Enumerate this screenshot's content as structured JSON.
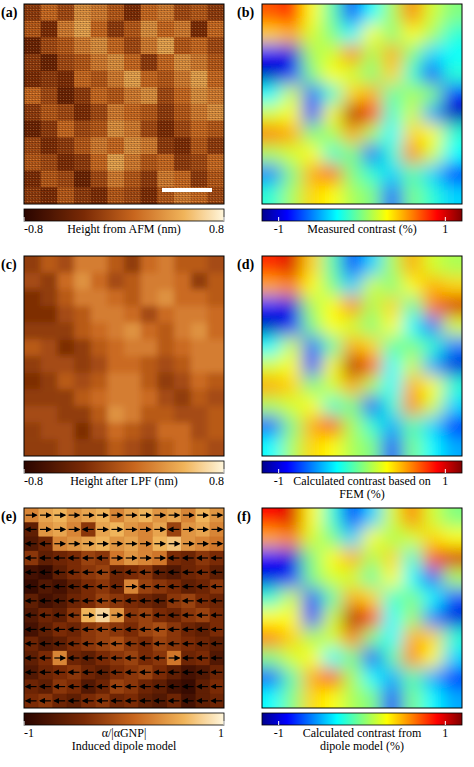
{
  "chart_data": [
    {
      "type": "heatmap",
      "title": "(a)",
      "color": "afmhot",
      "colorbar": {
        "label": "Height from AFM (nm)",
        "range": [
          -0.8,
          0.8
        ],
        "ticks": [
          -0.8,
          0.8
        ]
      },
      "cells": [
        [
          -0.2,
          0.1,
          -0.1,
          0.3,
          0.2,
          0.0,
          -0.3,
          0.1,
          0.2,
          -0.1,
          0.0,
          -0.2
        ],
        [
          0.0,
          -0.3,
          0.2,
          0.4,
          0.1,
          -0.2,
          0.0,
          0.3,
          0.1,
          0.2,
          -0.3,
          0.1
        ],
        [
          -0.4,
          -0.1,
          0.0,
          0.2,
          0.3,
          0.1,
          -0.1,
          0.2,
          0.4,
          0.0,
          0.1,
          -0.1
        ],
        [
          -0.2,
          -0.4,
          -0.1,
          0.0,
          0.2,
          0.3,
          0.1,
          -0.2,
          0.1,
          0.3,
          0.2,
          0.0
        ],
        [
          -0.3,
          -0.2,
          -0.3,
          0.1,
          0.0,
          0.2,
          0.4,
          0.1,
          0.0,
          0.2,
          0.4,
          0.1
        ],
        [
          0.1,
          -0.1,
          -0.4,
          -0.2,
          0.1,
          0.0,
          0.2,
          0.3,
          -0.1,
          0.1,
          0.3,
          0.2
        ],
        [
          -0.2,
          0.0,
          -0.1,
          -0.3,
          -0.1,
          0.2,
          0.1,
          0.0,
          -0.2,
          0.0,
          0.2,
          0.3
        ],
        [
          -0.4,
          -0.2,
          0.1,
          -0.1,
          0.0,
          0.3,
          0.2,
          -0.1,
          -0.3,
          -0.1,
          0.1,
          0.0
        ],
        [
          -0.1,
          -0.3,
          -0.2,
          0.0,
          0.2,
          0.1,
          0.3,
          0.2,
          -0.2,
          -0.3,
          0.0,
          -0.2
        ],
        [
          0.0,
          -0.1,
          -0.3,
          -0.2,
          0.1,
          0.4,
          0.2,
          0.0,
          0.1,
          -0.2,
          -0.1,
          0.1
        ],
        [
          -0.3,
          0.0,
          -0.1,
          -0.4,
          -0.1,
          0.2,
          0.0,
          -0.2,
          0.2,
          0.1,
          -0.2,
          0.0
        ],
        [
          -0.2,
          -0.3,
          0.0,
          -0.2,
          -0.3,
          0.0,
          -0.1,
          -0.3,
          0.0,
          0.2,
          0.1,
          -0.1
        ]
      ]
    },
    {
      "type": "heatmap",
      "title": "(b)",
      "color": "jet",
      "colorbar": {
        "label": "Measured contrast (%)",
        "range": [
          -1.2,
          1.2
        ],
        "ticks": [
          -1,
          1
        ]
      },
      "cells": [
        [
          0.7,
          0.9,
          0.3,
          -0.1,
          -0.8,
          -0.3,
          0.1,
          0.6,
          0.2,
          0.0
        ],
        [
          0.4,
          0.5,
          0.2,
          0.0,
          -0.3,
          0.3,
          0.0,
          0.3,
          0.1,
          -0.2
        ],
        [
          -0.9,
          -1.0,
          0.1,
          0.2,
          0.6,
          0.1,
          0.5,
          0.0,
          -0.4,
          -0.3
        ],
        [
          -1.1,
          -0.8,
          0.0,
          0.3,
          0.2,
          0.0,
          0.4,
          -0.2,
          -0.9,
          -0.2
        ],
        [
          -0.3,
          0.2,
          -0.7,
          -0.2,
          0.4,
          0.5,
          -0.1,
          0.1,
          0.0,
          -0.8
        ],
        [
          0.2,
          0.3,
          -0.9,
          0.3,
          1.1,
          0.8,
          -0.2,
          0.2,
          -0.5,
          -1.1
        ],
        [
          0.6,
          0.5,
          0.0,
          0.1,
          0.5,
          0.1,
          -0.3,
          0.4,
          0.3,
          -0.2
        ],
        [
          0.1,
          0.2,
          0.3,
          -0.2,
          0.0,
          -0.7,
          -0.2,
          0.6,
          0.2,
          -0.3
        ],
        [
          -0.6,
          0.0,
          0.5,
          0.7,
          0.0,
          -0.2,
          -0.4,
          -0.1,
          -0.4,
          -0.9
        ],
        [
          -0.2,
          0.1,
          0.4,
          0.3,
          0.1,
          0.0,
          -0.7,
          0.0,
          -0.2,
          -0.4
        ]
      ]
    },
    {
      "type": "heatmap",
      "title": "(c)",
      "color": "afmhot",
      "colorbar": {
        "label": "Height after LPF (nm)",
        "range": [
          -0.8,
          0.8
        ],
        "ticks": [
          -0.8,
          0.8
        ]
      },
      "cells": [
        [
          -0.2,
          0.0,
          -0.1,
          0.2,
          0.2,
          0.0,
          -0.2,
          0.1,
          0.2,
          0.0,
          0.0,
          -0.1
        ],
        [
          -0.1,
          -0.2,
          0.1,
          0.3,
          0.1,
          -0.1,
          0.0,
          0.2,
          0.2,
          0.1,
          -0.2,
          0.0
        ],
        [
          -0.3,
          -0.2,
          0.0,
          0.2,
          0.2,
          0.1,
          0.0,
          0.2,
          0.3,
          0.1,
          0.1,
          0.0
        ],
        [
          -0.3,
          -0.3,
          -0.1,
          0.0,
          0.2,
          0.2,
          0.1,
          -0.1,
          0.1,
          0.2,
          0.2,
          0.1
        ],
        [
          -0.2,
          -0.2,
          -0.2,
          0.0,
          0.1,
          0.2,
          0.3,
          0.1,
          0.0,
          0.2,
          0.3,
          0.1
        ],
        [
          0.0,
          -0.1,
          -0.3,
          -0.2,
          0.0,
          0.1,
          0.2,
          0.2,
          0.0,
          0.1,
          0.2,
          0.2
        ],
        [
          -0.2,
          -0.1,
          -0.1,
          -0.2,
          -0.1,
          0.1,
          0.1,
          0.0,
          -0.1,
          0.0,
          0.2,
          0.2
        ],
        [
          -0.3,
          -0.2,
          0.0,
          -0.1,
          0.0,
          0.2,
          0.2,
          0.0,
          -0.2,
          -0.1,
          0.1,
          0.0
        ],
        [
          -0.2,
          -0.2,
          -0.2,
          0.0,
          0.1,
          0.2,
          0.2,
          0.1,
          -0.1,
          -0.2,
          0.0,
          -0.1
        ],
        [
          -0.1,
          -0.1,
          -0.2,
          -0.2,
          0.0,
          0.3,
          0.2,
          0.0,
          0.0,
          -0.1,
          -0.1,
          0.0
        ],
        [
          -0.2,
          -0.1,
          -0.1,
          -0.3,
          -0.1,
          0.1,
          0.0,
          -0.1,
          0.1,
          0.1,
          -0.1,
          0.0
        ],
        [
          -0.2,
          -0.2,
          -0.1,
          -0.2,
          -0.2,
          0.0,
          -0.1,
          -0.2,
          0.0,
          0.1,
          0.0,
          -0.1
        ]
      ]
    },
    {
      "type": "heatmap",
      "title": "(d)",
      "color": "jet",
      "colorbar": {
        "label": "Calculated contrast based on FEM (%)",
        "range": [
          -1.2,
          1.2
        ],
        "ticks": [
          -1,
          1
        ]
      },
      "cells": [
        [
          0.8,
          1.0,
          0.4,
          -0.1,
          -0.8,
          -0.4,
          0.1,
          0.5,
          0.2,
          0.1
        ],
        [
          0.5,
          0.6,
          0.3,
          0.0,
          -0.4,
          0.2,
          0.0,
          0.3,
          0.5,
          0.4
        ],
        [
          -0.8,
          -1.0,
          0.1,
          0.3,
          0.6,
          0.1,
          0.4,
          -0.1,
          0.6,
          1.0
        ],
        [
          -1.1,
          -0.9,
          0.0,
          0.3,
          0.2,
          0.0,
          0.3,
          -0.3,
          -0.7,
          0.2
        ],
        [
          -0.3,
          0.2,
          -0.7,
          -0.1,
          0.5,
          0.4,
          -0.1,
          0.0,
          -0.2,
          -0.6
        ],
        [
          0.2,
          0.3,
          -0.9,
          0.3,
          1.1,
          0.7,
          -0.3,
          0.2,
          -0.5,
          -1.0
        ],
        [
          0.5,
          0.4,
          0.0,
          0.2,
          0.5,
          0.1,
          -0.3,
          0.5,
          0.3,
          -0.2
        ],
        [
          0.1,
          0.2,
          0.3,
          -0.2,
          0.0,
          -0.8,
          -0.2,
          0.6,
          0.2,
          -0.4
        ],
        [
          -0.7,
          0.0,
          0.5,
          0.8,
          0.1,
          -0.2,
          -0.5,
          -0.1,
          -0.4,
          -0.9
        ],
        [
          -0.3,
          0.1,
          0.4,
          0.3,
          0.1,
          0.0,
          -0.8,
          0.0,
          -0.3,
          -0.5
        ]
      ]
    },
    {
      "type": "heatmap",
      "title": "(e)",
      "subtitle": "Induced dipole model",
      "color": "afmhot",
      "marker": "arrow",
      "colorbar": {
        "label": "α/|αGNP|",
        "range": [
          -1,
          1
        ],
        "ticks": [
          -1,
          1
        ]
      },
      "cells": [
        [
          0.3,
          0.5,
          0.6,
          0.4,
          0.5,
          0.6,
          0.3,
          0.5,
          0.6,
          0.4,
          0.5,
          0.3,
          0.6,
          0.4
        ],
        [
          -0.6,
          0.4,
          0.5,
          0.3,
          -0.3,
          0.5,
          0.6,
          0.4,
          0.3,
          0.5,
          -0.2,
          0.4,
          0.5,
          0.3
        ],
        [
          -0.7,
          -0.5,
          0.3,
          0.4,
          0.5,
          0.6,
          0.4,
          0.5,
          0.3,
          0.6,
          0.7,
          0.4,
          0.3,
          0.2
        ],
        [
          -0.3,
          -0.6,
          -0.5,
          -0.4,
          -0.2,
          -0.3,
          0.2,
          0.4,
          0.3,
          0.2,
          -0.4,
          -0.5,
          -0.3,
          -0.4
        ],
        [
          -0.8,
          -0.9,
          -0.6,
          -0.4,
          -0.3,
          -0.2,
          -0.5,
          -0.4,
          -0.3,
          -0.6,
          -0.7,
          -0.5,
          -0.4,
          -0.6
        ],
        [
          -0.9,
          -0.7,
          -0.8,
          -0.6,
          -0.4,
          -0.3,
          -0.5,
          0.3,
          -0.2,
          -0.3,
          -0.4,
          -0.6,
          -0.5,
          -0.3
        ],
        [
          -0.6,
          -0.8,
          -0.7,
          -0.5,
          -0.4,
          -0.2,
          -0.3,
          -0.4,
          -0.5,
          -0.6,
          -0.3,
          -0.2,
          -0.4,
          -0.5
        ],
        [
          -0.7,
          -0.5,
          -0.6,
          -0.3,
          0.6,
          0.8,
          0.4,
          -0.3,
          -0.2,
          -0.4,
          -0.5,
          -0.3,
          -0.2,
          -0.4
        ],
        [
          -0.8,
          -0.6,
          -0.4,
          -0.5,
          -0.3,
          -0.2,
          -0.3,
          -0.4,
          -0.2,
          -0.1,
          -0.3,
          -0.5,
          -0.6,
          -0.4
        ],
        [
          -0.5,
          -0.7,
          -0.6,
          -0.4,
          -0.3,
          -0.2,
          -0.1,
          -0.3,
          -0.4,
          -0.2,
          -0.3,
          -0.4,
          -0.5,
          -0.6
        ],
        [
          -0.6,
          -0.4,
          0.3,
          -0.5,
          -0.6,
          -0.4,
          -0.3,
          -0.2,
          -0.4,
          -0.3,
          0.2,
          -0.5,
          -0.4,
          -0.7
        ],
        [
          -0.7,
          -0.5,
          -0.4,
          -0.3,
          -0.5,
          -0.6,
          -0.4,
          -0.3,
          -0.2,
          -0.4,
          -0.6,
          -0.8,
          -0.7,
          -0.5
        ],
        [
          -0.5,
          -0.6,
          -0.3,
          -0.4,
          -0.7,
          -0.5,
          -0.2,
          -0.3,
          -0.5,
          -0.6,
          -0.8,
          -0.9,
          -0.6,
          -0.4
        ],
        [
          -0.4,
          -0.3,
          -0.5,
          -0.6,
          -0.4,
          -0.3,
          -0.5,
          -0.4,
          -0.6,
          -0.7,
          -0.5,
          -0.8,
          -0.6,
          -0.5
        ]
      ]
    },
    {
      "type": "heatmap",
      "title": "(f)",
      "color": "jet",
      "colorbar": {
        "label": "Calculated contrast from dipole model (%)",
        "range": [
          -1.2,
          1.2
        ],
        "ticks": [
          -1,
          1
        ]
      },
      "cells": [
        [
          0.9,
          1.0,
          0.3,
          -0.2,
          -0.9,
          -0.4,
          0.2,
          0.6,
          0.2,
          0.0
        ],
        [
          0.5,
          0.6,
          0.2,
          0.0,
          -0.4,
          0.3,
          0.1,
          0.2,
          0.4,
          0.3
        ],
        [
          -0.9,
          -1.0,
          0.0,
          0.3,
          0.5,
          0.1,
          0.4,
          -0.2,
          0.7,
          1.0
        ],
        [
          -1.0,
          -0.8,
          0.0,
          0.2,
          0.2,
          -0.1,
          0.3,
          -0.3,
          -0.8,
          0.1
        ],
        [
          -0.2,
          0.2,
          -0.8,
          -0.1,
          0.5,
          0.4,
          -0.2,
          0.0,
          -0.3,
          -0.7
        ],
        [
          0.3,
          0.3,
          -0.9,
          0.2,
          1.1,
          0.8,
          -0.3,
          0.1,
          -0.6,
          -1.0
        ],
        [
          0.6,
          0.4,
          0.1,
          0.2,
          0.6,
          0.0,
          -0.3,
          0.5,
          0.4,
          -0.2
        ],
        [
          0.0,
          0.2,
          0.3,
          -0.3,
          0.0,
          -0.8,
          -0.1,
          0.6,
          0.3,
          -0.4
        ],
        [
          -0.7,
          -0.1,
          0.5,
          0.8,
          0.1,
          -0.3,
          -0.5,
          -0.1,
          -0.5,
          -0.9
        ],
        [
          -0.3,
          0.0,
          0.4,
          0.3,
          0.1,
          0.0,
          -0.8,
          0.0,
          -0.3,
          -0.5
        ]
      ]
    }
  ]
}
